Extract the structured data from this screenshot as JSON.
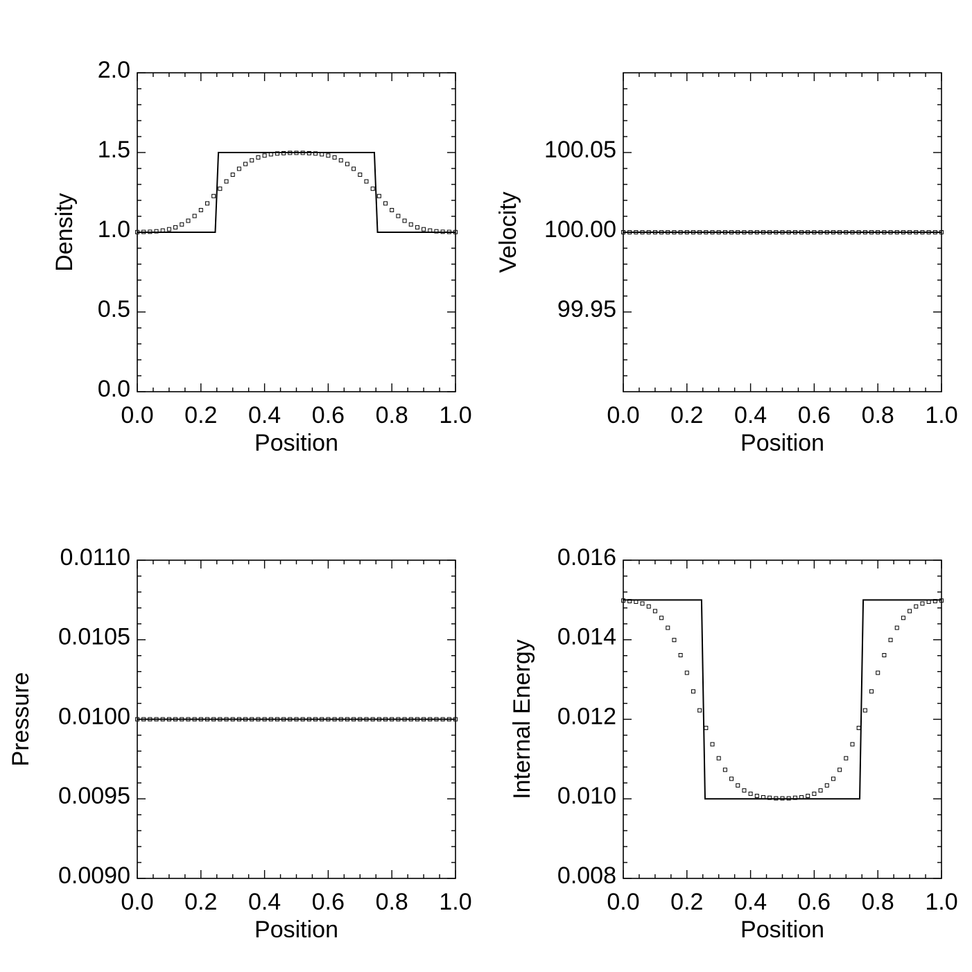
{
  "chart_data": [
    {
      "type": "line",
      "xlabel": "Position",
      "ylabel": "Density",
      "xlim": [
        0,
        1
      ],
      "ylim": [
        0,
        2
      ],
      "xticks": [
        {
          "value": 0,
          "label": "0.0"
        },
        {
          "value": 0.2,
          "label": "0.2"
        },
        {
          "value": 0.4,
          "label": "0.4"
        },
        {
          "value": 0.6,
          "label": "0.6"
        },
        {
          "value": 0.8,
          "label": "0.8"
        },
        {
          "value": 1,
          "label": "1.0"
        }
      ],
      "yticks": [
        {
          "value": 0,
          "label": "0.0"
        },
        {
          "value": 0.5,
          "label": "0.5"
        },
        {
          "value": 1,
          "label": "1.0"
        },
        {
          "value": 1.5,
          "label": "1.5"
        },
        {
          "value": 2,
          "label": "2.0"
        }
      ],
      "series": [
        {
          "style": "line",
          "color": "#000000",
          "x": [
            0,
            0.245,
            0.255,
            0.745,
            0.755,
            1
          ],
          "values": [
            1,
            1,
            1.5,
            1.5,
            1,
            1
          ]
        },
        {
          "style": "squares",
          "color": "#000000",
          "x": [
            0,
            0.02,
            0.04,
            0.06,
            0.08,
            0.1,
            0.12,
            0.14,
            0.16,
            0.18,
            0.2,
            0.22,
            0.24,
            0.26,
            0.28,
            0.3,
            0.32,
            0.34,
            0.36,
            0.38,
            0.4,
            0.42,
            0.44,
            0.46,
            0.48,
            0.5,
            0.52,
            0.54,
            0.56,
            0.58,
            0.6,
            0.62,
            0.64,
            0.66,
            0.68,
            0.7,
            0.72,
            0.74,
            0.76,
            0.78,
            0.8,
            0.82,
            0.84,
            0.86,
            0.88,
            0.9,
            0.92,
            0.94,
            0.96,
            0.98,
            1
          ],
          "values": [
            1.001,
            1.002,
            1.003,
            1.006,
            1.011,
            1.019,
            1.031,
            1.049,
            1.072,
            1.102,
            1.139,
            1.181,
            1.227,
            1.273,
            1.319,
            1.361,
            1.398,
            1.428,
            1.451,
            1.469,
            1.481,
            1.489,
            1.494,
            1.496,
            1.498,
            1.498,
            1.498,
            1.496,
            1.494,
            1.489,
            1.481,
            1.469,
            1.451,
            1.428,
            1.398,
            1.361,
            1.319,
            1.273,
            1.227,
            1.181,
            1.139,
            1.102,
            1.072,
            1.049,
            1.031,
            1.019,
            1.011,
            1.006,
            1.003,
            1.002,
            1.001
          ]
        }
      ]
    },
    {
      "type": "line",
      "xlabel": "Position",
      "ylabel": "Velocity",
      "xlim": [
        0,
        1
      ],
      "ylim": [
        99.9,
        100.1
      ],
      "xticks": [
        {
          "value": 0,
          "label": "0.0"
        },
        {
          "value": 0.2,
          "label": "0.2"
        },
        {
          "value": 0.4,
          "label": "0.4"
        },
        {
          "value": 0.6,
          "label": "0.6"
        },
        {
          "value": 0.8,
          "label": "0.8"
        },
        {
          "value": 1,
          "label": "1.0"
        }
      ],
      "yticks": [
        {
          "value": 99.95,
          "label": "99.95"
        },
        {
          "value": 100,
          "label": "100.00"
        },
        {
          "value": 100.05,
          "label": "100.05"
        }
      ],
      "series": [
        {
          "style": "line",
          "color": "#000000",
          "x": [
            0,
            1
          ],
          "values": [
            100,
            100
          ]
        },
        {
          "style": "squares",
          "color": "#000000",
          "x": [
            0,
            0.02,
            0.04,
            0.06,
            0.08,
            0.1,
            0.12,
            0.14,
            0.16,
            0.18,
            0.2,
            0.22,
            0.24,
            0.26,
            0.28,
            0.3,
            0.32,
            0.34,
            0.36,
            0.38,
            0.4,
            0.42,
            0.44,
            0.46,
            0.48,
            0.5,
            0.52,
            0.54,
            0.56,
            0.58,
            0.6,
            0.62,
            0.64,
            0.66,
            0.68,
            0.7,
            0.72,
            0.74,
            0.76,
            0.78,
            0.8,
            0.82,
            0.84,
            0.86,
            0.88,
            0.9,
            0.92,
            0.94,
            0.96,
            0.98,
            1
          ],
          "values": [
            100,
            100,
            100,
            100,
            100,
            100,
            100,
            100,
            100,
            100,
            100,
            100,
            100,
            100,
            100,
            100,
            100,
            100,
            100,
            100,
            100,
            100,
            100,
            100,
            100,
            100,
            100,
            100,
            100,
            100,
            100,
            100,
            100,
            100,
            100,
            100,
            100,
            100,
            100,
            100,
            100,
            100,
            100,
            100,
            100,
            100,
            100,
            100,
            100,
            100,
            100
          ]
        }
      ]
    },
    {
      "type": "line",
      "xlabel": "Position",
      "ylabel": "Pressure",
      "xlim": [
        0,
        1
      ],
      "ylim": [
        0.009,
        0.011
      ],
      "xticks": [
        {
          "value": 0,
          "label": "0.0"
        },
        {
          "value": 0.2,
          "label": "0.2"
        },
        {
          "value": 0.4,
          "label": "0.4"
        },
        {
          "value": 0.6,
          "label": "0.6"
        },
        {
          "value": 0.8,
          "label": "0.8"
        },
        {
          "value": 1,
          "label": "1.0"
        }
      ],
      "yticks": [
        {
          "value": 0.009,
          "label": "0.0090"
        },
        {
          "value": 0.0095,
          "label": "0.0095"
        },
        {
          "value": 0.01,
          "label": "0.0100"
        },
        {
          "value": 0.0105,
          "label": "0.0105"
        },
        {
          "value": 0.011,
          "label": "0.0110"
        }
      ],
      "series": [
        {
          "style": "line",
          "color": "#000000",
          "x": [
            0,
            1
          ],
          "values": [
            0.01,
            0.01
          ]
        },
        {
          "style": "squares",
          "color": "#000000",
          "x": [
            0,
            0.02,
            0.04,
            0.06,
            0.08,
            0.1,
            0.12,
            0.14,
            0.16,
            0.18,
            0.2,
            0.22,
            0.24,
            0.26,
            0.28,
            0.3,
            0.32,
            0.34,
            0.36,
            0.38,
            0.4,
            0.42,
            0.44,
            0.46,
            0.48,
            0.5,
            0.52,
            0.54,
            0.56,
            0.58,
            0.6,
            0.62,
            0.64,
            0.66,
            0.68,
            0.7,
            0.72,
            0.74,
            0.76,
            0.78,
            0.8,
            0.82,
            0.84,
            0.86,
            0.88,
            0.9,
            0.92,
            0.94,
            0.96,
            0.98,
            1
          ],
          "values": [
            0.01,
            0.01,
            0.01,
            0.01,
            0.01,
            0.01,
            0.01,
            0.01,
            0.01,
            0.01,
            0.01,
            0.01,
            0.01,
            0.01,
            0.01,
            0.01,
            0.01,
            0.01,
            0.01,
            0.01,
            0.01,
            0.01,
            0.01,
            0.01,
            0.01,
            0.01,
            0.01,
            0.01,
            0.01,
            0.01,
            0.01,
            0.01,
            0.01,
            0.01,
            0.01,
            0.01,
            0.01,
            0.01,
            0.01,
            0.01,
            0.01,
            0.01,
            0.01,
            0.01,
            0.01,
            0.01,
            0.01,
            0.01,
            0.01,
            0.01,
            0.01
          ]
        }
      ]
    },
    {
      "type": "line",
      "xlabel": "Position",
      "ylabel": "Internal Energy",
      "xlim": [
        0,
        1
      ],
      "ylim": [
        0.008,
        0.016
      ],
      "xticks": [
        {
          "value": 0,
          "label": "0.0"
        },
        {
          "value": 0.2,
          "label": "0.2"
        },
        {
          "value": 0.4,
          "label": "0.4"
        },
        {
          "value": 0.6,
          "label": "0.6"
        },
        {
          "value": 0.8,
          "label": "0.8"
        },
        {
          "value": 1,
          "label": "1.0"
        }
      ],
      "yticks": [
        {
          "value": 0.008,
          "label": "0.008"
        },
        {
          "value": 0.01,
          "label": "0.010"
        },
        {
          "value": 0.012,
          "label": "0.012"
        },
        {
          "value": 0.014,
          "label": "0.014"
        },
        {
          "value": 0.016,
          "label": "0.016"
        }
      ],
      "series": [
        {
          "style": "line",
          "color": "#000000",
          "x": [
            0,
            0.246,
            0.257,
            0.743,
            0.754,
            1
          ],
          "values": [
            0.015,
            0.015,
            0.01,
            0.01,
            0.015,
            0.015
          ]
        },
        {
          "style": "squares",
          "color": "#000000",
          "x": [
            0,
            0.02,
            0.04,
            0.06,
            0.08,
            0.1,
            0.12,
            0.14,
            0.16,
            0.18,
            0.2,
            0.22,
            0.24,
            0.26,
            0.28,
            0.3,
            0.32,
            0.34,
            0.36,
            0.38,
            0.4,
            0.42,
            0.44,
            0.46,
            0.48,
            0.5,
            0.52,
            0.54,
            0.56,
            0.58,
            0.6,
            0.62,
            0.64,
            0.66,
            0.68,
            0.7,
            0.72,
            0.74,
            0.76,
            0.78,
            0.8,
            0.82,
            0.84,
            0.86,
            0.88,
            0.9,
            0.92,
            0.94,
            0.96,
            0.98,
            1
          ],
          "values": [
            0.014985,
            0.01497,
            0.014955,
            0.01491,
            0.014837,
            0.01472,
            0.014549,
            0.0143,
            0.013993,
            0.013612,
            0.013169,
            0.012701,
            0.012225,
            0.011783,
            0.011372,
            0.011021,
            0.01073,
            0.010504,
            0.010338,
            0.010211,
            0.010128,
            0.010074,
            0.01004,
            0.010027,
            0.010013,
            0.010013,
            0.010013,
            0.010027,
            0.01004,
            0.010074,
            0.010128,
            0.010211,
            0.010338,
            0.010504,
            0.01073,
            0.011021,
            0.011372,
            0.011783,
            0.012225,
            0.012701,
            0.013169,
            0.013612,
            0.013993,
            0.0143,
            0.014549,
            0.01472,
            0.014837,
            0.01491,
            0.014955,
            0.01497,
            0.014985
          ]
        }
      ]
    }
  ]
}
